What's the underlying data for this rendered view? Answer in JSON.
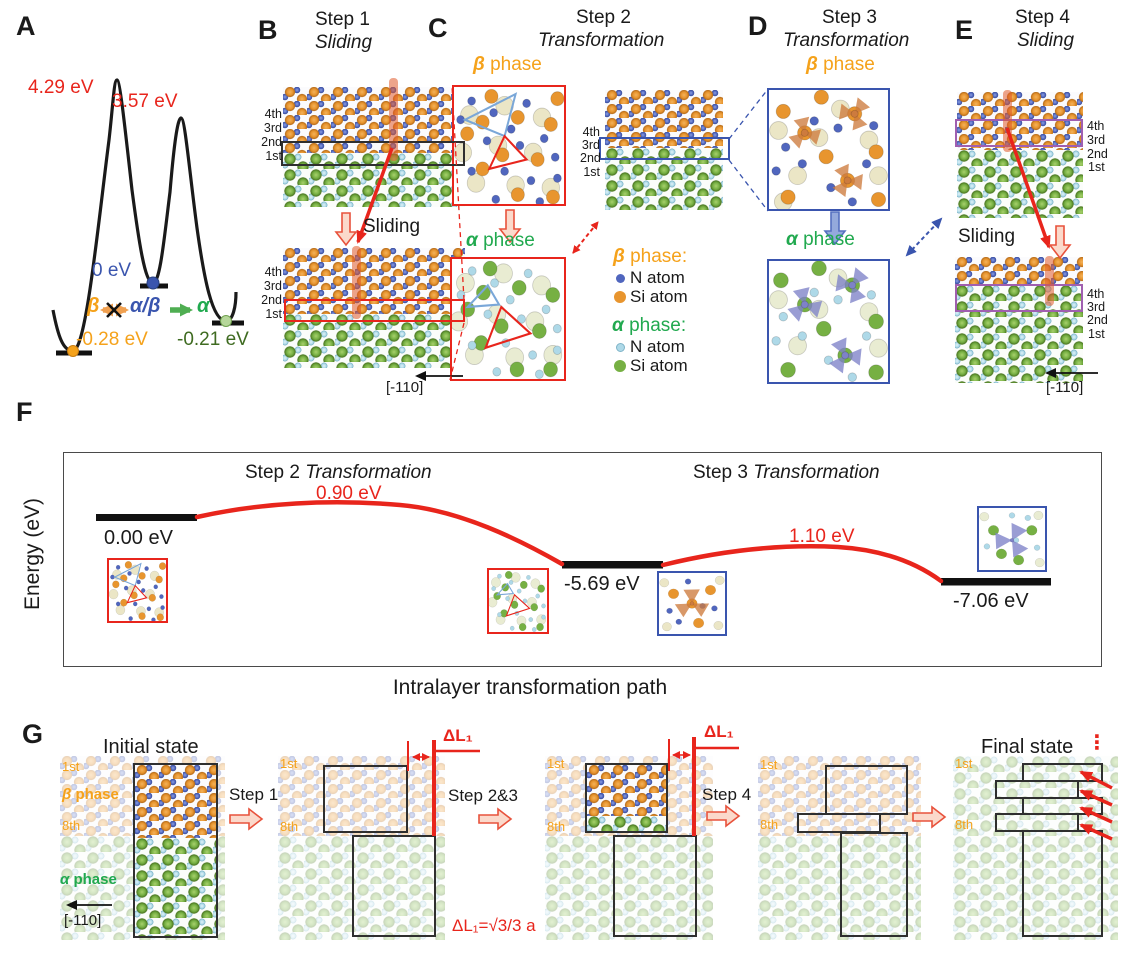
{
  "panel_a": {
    "label": "A",
    "barrier_left": "4.29 eV",
    "barrier_right": "3.57 eV",
    "ref_level": "0 eV",
    "beta_symbol": "β",
    "interface_symbol": "α/β",
    "alpha_symbol": "α",
    "beta_min": "-0.28 eV",
    "alpha_min": "-0.21 eV"
  },
  "panel_b": {
    "label": "B",
    "step_title": "Step 1",
    "step_mode": "Sliding",
    "sliding_label": "Sliding",
    "direction_label": "[-110]",
    "layers": [
      "4th",
      "3rd",
      "2nd",
      "1st"
    ]
  },
  "panel_c": {
    "label": "C",
    "step_title": "Step 2",
    "step_mode": "Transformation",
    "beta_sym": "β",
    "beta_word": "phase",
    "alpha_sym": "α",
    "alpha_word": "phase",
    "layers": [
      "4th",
      "3rd",
      "2nd",
      "1st"
    ]
  },
  "legend": {
    "beta_sym": "β",
    "beta_word": "phase:",
    "beta_n_label": "N atom",
    "beta_si_label": "Si atom",
    "alpha_sym": "α",
    "alpha_word": "phase:",
    "alpha_n_label": "N atom",
    "alpha_si_label": "Si atom"
  },
  "panel_d": {
    "label": "D",
    "step_title": "Step 3",
    "step_mode": "Transformation",
    "beta_sym": "β",
    "beta_word": "phase",
    "alpha_sym": "α",
    "alpha_word": "phase"
  },
  "panel_e": {
    "label": "E",
    "step_title": "Step 4",
    "step_mode": "Sliding",
    "sliding_label": "Sliding",
    "direction_label": "[-110]",
    "layers": [
      "4th",
      "3rd",
      "2nd",
      "1st"
    ]
  },
  "panel_f": {
    "label": "F",
    "ylabel": "Energy (eV)",
    "seg1_step": "Step 2",
    "seg1_mode": "Transformation",
    "seg2_step": "Step 3",
    "seg2_mode": "Transformation",
    "level_start": "0.00 eV",
    "barrier1": "0.90 eV",
    "level_mid": "-5.69 eV",
    "barrier2": "1.10 eV",
    "level_end": "-7.06 eV",
    "caption": "Intralayer transformation path"
  },
  "panel_g": {
    "label": "G",
    "initial_title": "Initial state",
    "final_title": "Final state",
    "final_dots": "⋮",
    "step1_label": "Step 1",
    "step23_label": "Step 2&3",
    "step4_label": "Step 4",
    "dl1_label": "ΔL₁",
    "dl1_formula": "ΔL₁=√3/3 a",
    "layer_first": "1st",
    "layer_eighth": "8th",
    "beta_sym": "β",
    "beta_word": "phase",
    "alpha_sym": "α",
    "alpha_word": "phase",
    "direction_label": "[-110]"
  },
  "colors": {
    "beta_si": "#e8952e",
    "beta_n": "#5066be",
    "alpha_si": "#76b043",
    "alpha_n": "#aed9e8",
    "accent_red": "#e8251c",
    "orange_text": "#f5a21b",
    "green_text": "#21a94f",
    "blue_text": "#3a55ae",
    "dark_green_text": "#3f6b21",
    "purple_box": "#a05fb0"
  },
  "chart_data": [
    {
      "type": "line",
      "title": "Panel A interlayer sliding energy landscape",
      "states": [
        "β",
        "α/β",
        "α"
      ],
      "state_levels_eV": [
        -0.28,
        0,
        -0.21
      ],
      "barrier_peaks_eV": [
        4.29,
        3.57
      ],
      "labels": [
        "4.29 eV",
        "3.57 eV",
        "0 eV",
        "-0.28 eV",
        "-0.21 eV"
      ]
    },
    {
      "type": "line",
      "title": "Panel F intralayer transformation path",
      "ylabel": "Energy (eV)",
      "xlabel": "Intralayer transformation path",
      "segment_titles": [
        "Step 2 Transformation",
        "Step 3 Transformation"
      ],
      "level_values_eV": [
        0.0,
        -5.69,
        -7.06
      ],
      "barrier_values_eV": [
        0.9,
        1.1
      ],
      "grid": false,
      "legend": "none"
    }
  ]
}
